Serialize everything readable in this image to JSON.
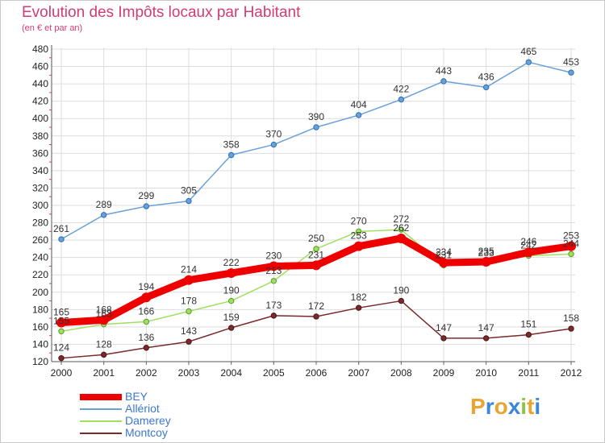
{
  "title": "Evolution des Impôts locaux par Habitant",
  "subtitle": "(en € et par an)",
  "logo": {
    "letters": [
      "P",
      "r",
      "o",
      "x",
      "i",
      "t",
      "i"
    ],
    "colors": [
      "#e8a531",
      "#3a88d6",
      "#e8a531",
      "#3a88d6",
      "#8cc63f",
      "#e8a531",
      "#3a88d6"
    ]
  },
  "chart_data": {
    "type": "line",
    "title": "Evolution des Impôts locaux par Habitant",
    "subtitle": "(en € et par an)",
    "xlabel": "",
    "ylabel": "",
    "categories": [
      "2000",
      "2001",
      "2002",
      "2003",
      "2004",
      "2005",
      "2006",
      "2007",
      "2008",
      "2009",
      "2010",
      "2011",
      "2012"
    ],
    "y_ticks": [
      "120",
      "140",
      "160",
      "180",
      "200",
      "220",
      "240",
      "260",
      "280",
      "300",
      "320",
      "340",
      "360",
      "380",
      "400",
      "420",
      "440",
      "460",
      "480"
    ],
    "ylim": [
      120,
      480
    ],
    "grid": true,
    "legend_position": "bottom-left",
    "series": [
      {
        "name": "BEY",
        "color": "#ee0000",
        "values": [
          165,
          168,
          194,
          214,
          222,
          230,
          231,
          253,
          262,
          234,
          235,
          246,
          253
        ],
        "labels": [
          "165",
          "168",
          "194",
          "214",
          "222",
          "230",
          "231",
          "253",
          "262",
          "234",
          "235",
          "246",
          "253"
        ]
      },
      {
        "name": "Alleriot",
        "legend_label": "Allériot",
        "color": "#6aa0d8",
        "values": [
          261,
          289,
          299,
          305,
          358,
          370,
          390,
          404,
          422,
          443,
          436,
          465,
          453
        ],
        "labels": [
          "261",
          "289",
          "299",
          "305",
          "358",
          "370",
          "390",
          "404",
          "422",
          "443",
          "436",
          "465",
          "453"
        ]
      },
      {
        "name": "Damerey",
        "color": "#a0e060",
        "values": [
          155,
          163,
          166,
          178,
          190,
          213,
          250,
          270,
          272,
          231,
          233,
          242,
          244
        ],
        "labels": [
          "155",
          "163",
          "166",
          "178",
          "190",
          "213",
          "250",
          "270",
          "272",
          "231",
          "233",
          "242",
          "244"
        ]
      },
      {
        "name": "Montcoy",
        "color": "#7a2a2a",
        "values": [
          124,
          128,
          136,
          143,
          159,
          173,
          172,
          182,
          190,
          147,
          147,
          151,
          158
        ],
        "labels": [
          "124",
          "128",
          "136",
          "143",
          "159",
          "173",
          "172",
          "182",
          "190",
          "147",
          "147",
          "151",
          "158"
        ]
      }
    ]
  }
}
